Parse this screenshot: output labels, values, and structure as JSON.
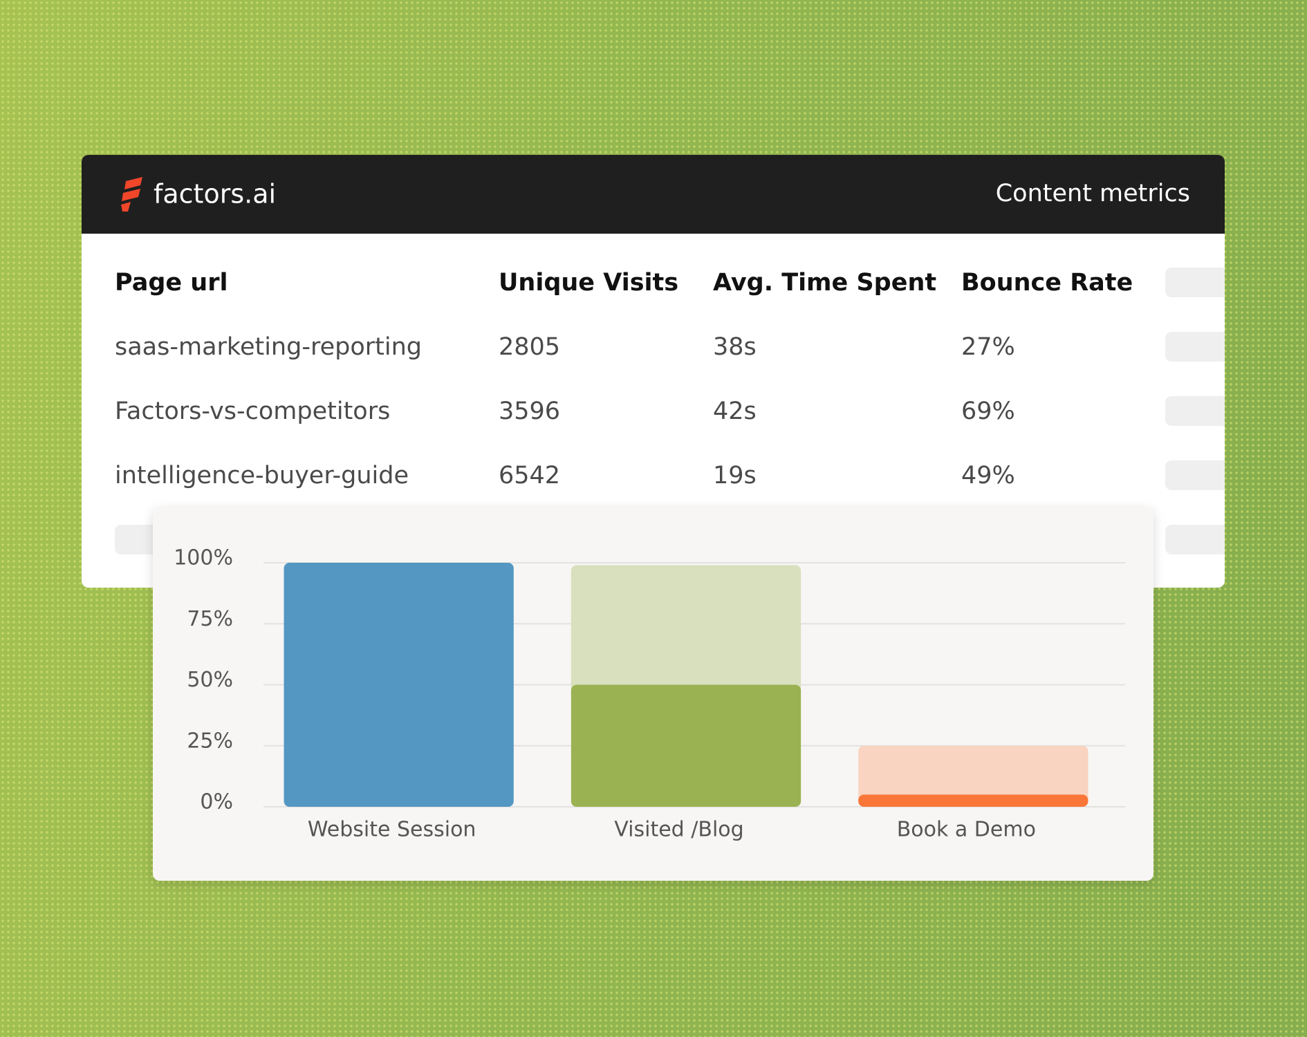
{
  "header": {
    "brand": "factors.ai",
    "title": "Content metrics"
  },
  "table": {
    "columns": [
      "Page url",
      "Unique Visits",
      "Avg. Time Spent",
      "Bounce Rate"
    ],
    "rows": [
      [
        "saas-marketing-reporting",
        "2805",
        "38s",
        "27%"
      ],
      [
        "Factors-vs-competitors",
        "3596",
        "42s",
        "69%"
      ],
      [
        "intelligence-buyer-guide",
        "6542",
        "19s",
        "49%"
      ]
    ]
  },
  "chart_data": {
    "type": "bar",
    "barmode": "overlay",
    "categories": [
      "Website Session",
      "Visited /Blog",
      "Book a Demo"
    ],
    "series": [
      {
        "colors": [
          null,
          "#d8e0bd",
          "#f9d4c1"
        ],
        "values": [
          null,
          99,
          25
        ]
      },
      {
        "colors": [
          "#5497c3",
          "#9bb252",
          "#f97638"
        ],
        "values": [
          100,
          50,
          5
        ]
      }
    ],
    "ylim": [
      0,
      100
    ],
    "yticks": [
      {
        "value": 0,
        "label": "0%"
      },
      {
        "value": 25,
        "label": "25%"
      },
      {
        "value": 50,
        "label": "50%"
      },
      {
        "value": 75,
        "label": "75%"
      },
      {
        "value": 100,
        "label": "100%"
      }
    ],
    "grid": true
  }
}
